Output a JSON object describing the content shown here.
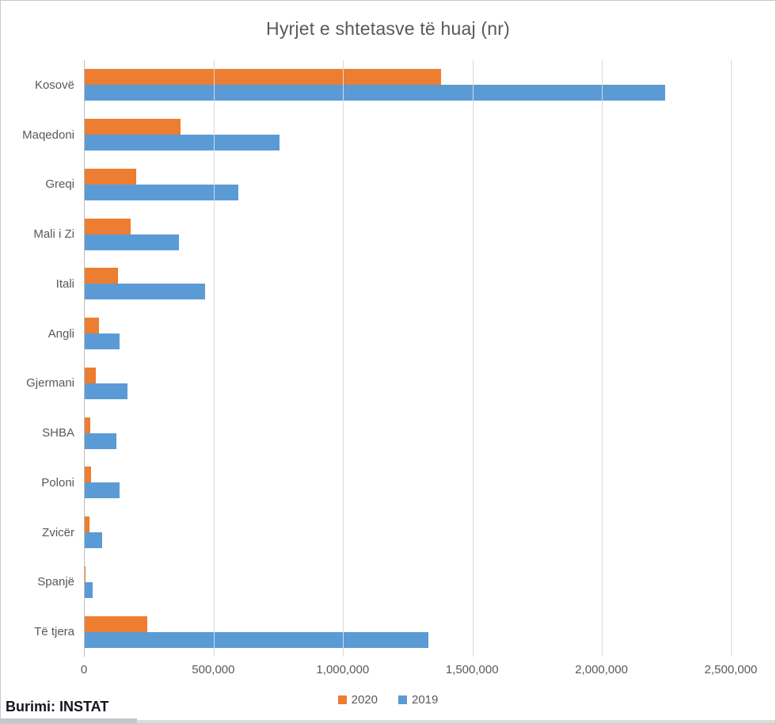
{
  "title": "Hyrjet e shtetasve të huaj (nr)",
  "source": "Burimi: INSTAT",
  "colors": {
    "series_2020": "#ED7D31",
    "series_2019": "#5B9BD5",
    "text": "#595959",
    "gridline": "#D9D9D9",
    "axis_line": "#BFBFBF"
  },
  "chart_data": {
    "type": "bar",
    "orientation": "horizontal",
    "title": "Hyrjet e shtetasve të huaj (nr)",
    "categories": [
      "Kosovë",
      "Maqedoni",
      "Greqi",
      "Mali i Zi",
      "Itali",
      "Angli",
      "Gjermani",
      "SHBA",
      "Poloni",
      "Zvicër",
      "Spanjë",
      "Të tjera"
    ],
    "series": [
      {
        "name": "2020",
        "color": "#ED7D31",
        "values": [
          1380000,
          370000,
          200000,
          177000,
          128000,
          54000,
          43000,
          22000,
          26000,
          18000,
          4000,
          243000
        ]
      },
      {
        "name": "2019",
        "color": "#5B9BD5",
        "values": [
          2245000,
          755000,
          595000,
          365000,
          465000,
          135000,
          165000,
          122000,
          135000,
          66000,
          31000,
          1330000
        ]
      }
    ],
    "xlim": [
      0,
      2500000
    ],
    "x_ticks": [
      0,
      500000,
      1000000,
      1500000,
      2000000,
      2500000
    ],
    "x_tick_labels": [
      "0",
      "500,000",
      "1,000,000",
      "1,500,000",
      "2,000,000",
      "2,500,000"
    ],
    "xlabel": "",
    "ylabel": "",
    "grid": "vertical",
    "legend_position": "bottom-center"
  }
}
